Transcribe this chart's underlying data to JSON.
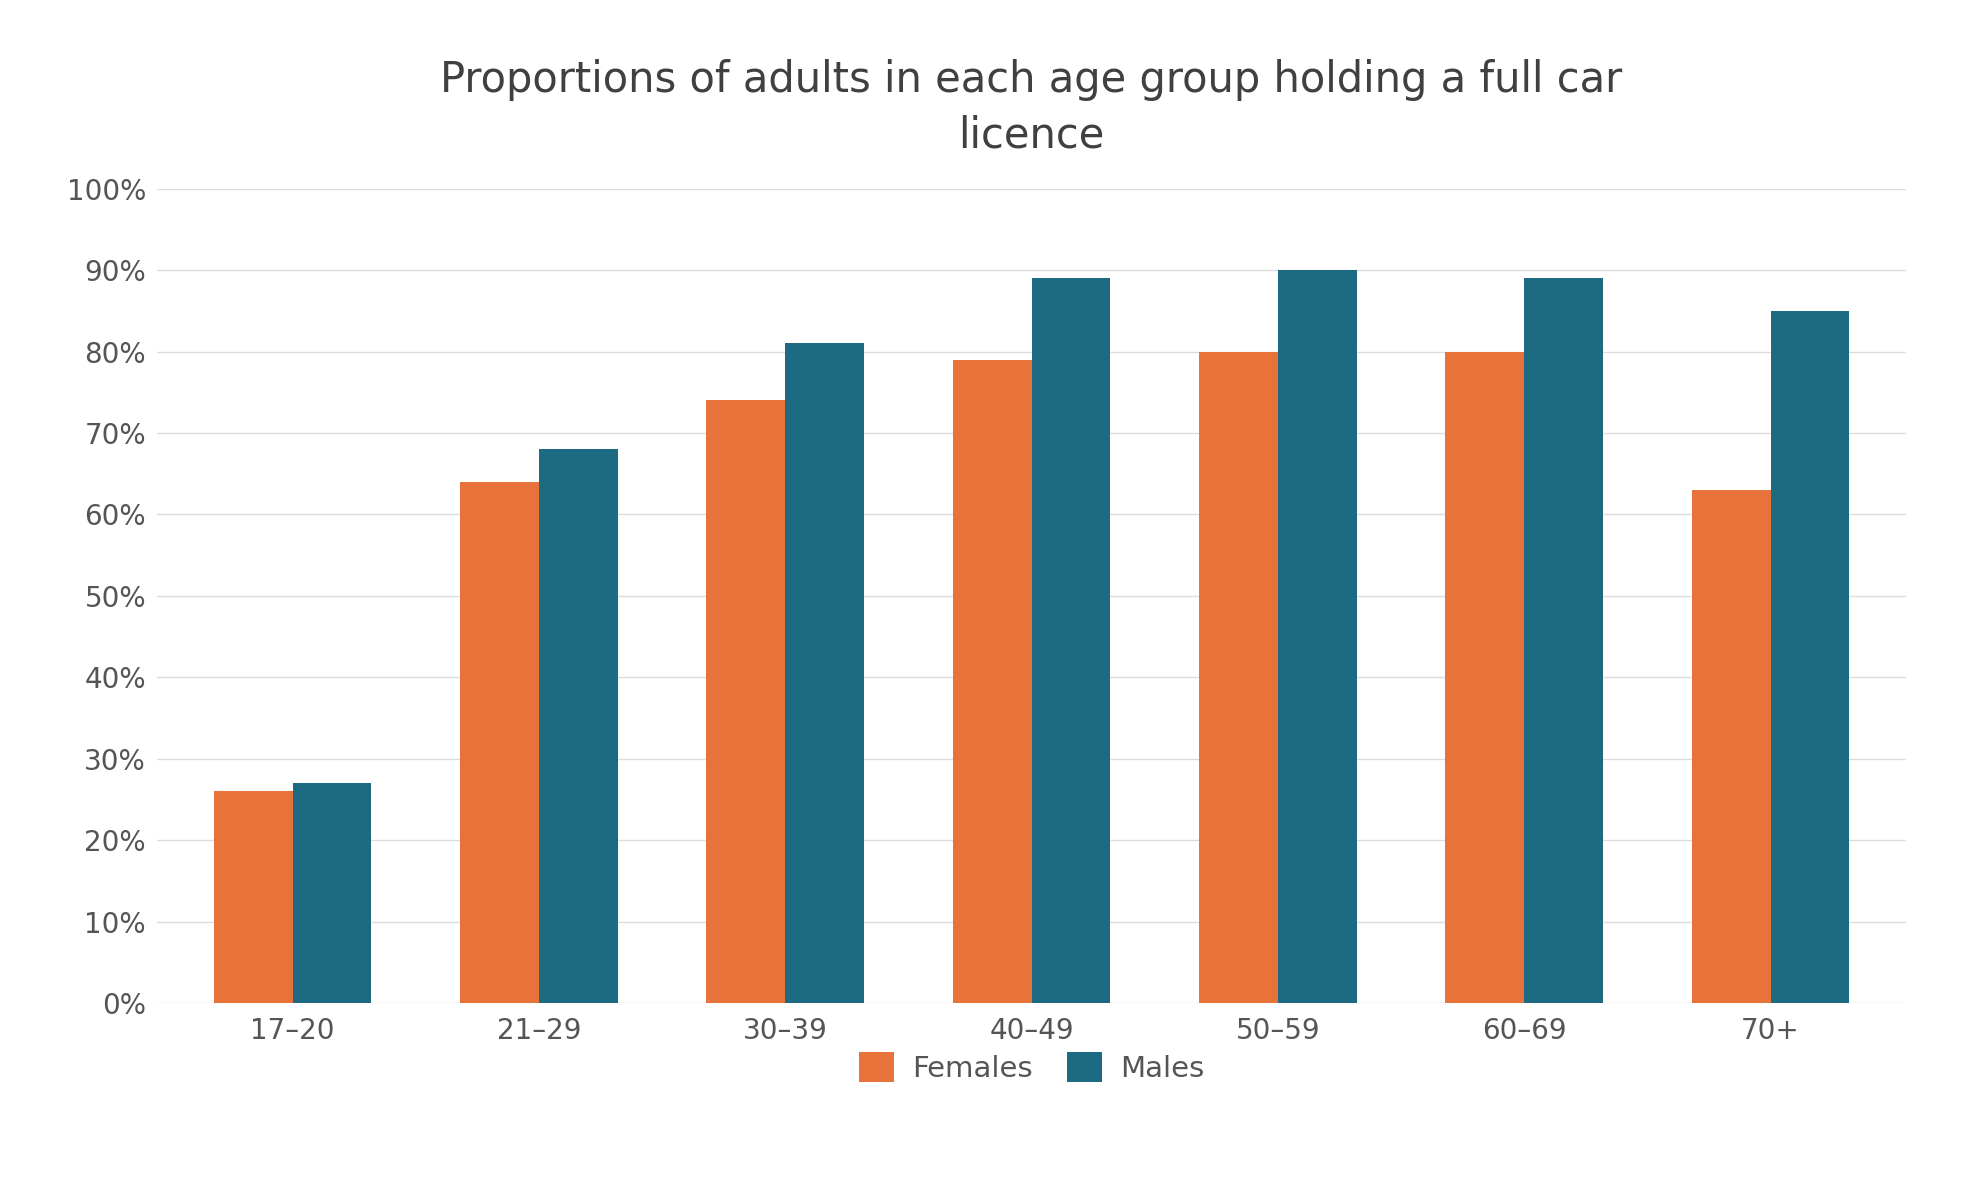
{
  "title": "Proportions of adults in each age group holding a full car\nlicence",
  "categories": [
    "17–20",
    "21–29",
    "30–39",
    "40–49",
    "50–59",
    "60–69",
    "70+"
  ],
  "females": [
    26,
    64,
    74,
    79,
    80,
    80,
    63
  ],
  "males": [
    27,
    68,
    81,
    89,
    90,
    89,
    85
  ],
  "female_color": "#E8733A",
  "male_color": "#1D6B82",
  "background_color": "#FFFFFF",
  "ylim": [
    0,
    100
  ],
  "yticks": [
    0,
    10,
    20,
    30,
    40,
    50,
    60,
    70,
    80,
    90,
    100
  ],
  "legend_labels": [
    "Females",
    "Males"
  ],
  "title_fontsize": 30,
  "tick_fontsize": 20,
  "legend_fontsize": 21,
  "bar_width": 0.32,
  "title_color": "#404040",
  "tick_color": "#555555",
  "grid_color": "#DDDDDD"
}
